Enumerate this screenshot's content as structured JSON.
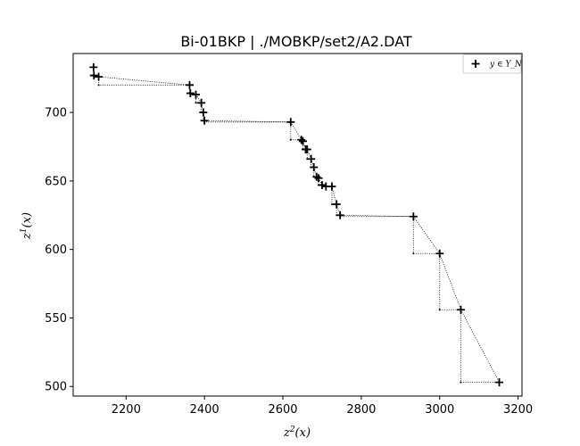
{
  "chart_data": {
    "type": "scatter",
    "title": "Bi-01BKP | ./MOBKP/set2/A2.DAT",
    "xlabel": "z^2(x)",
    "ylabel": "z^1(x)",
    "xlim": [
      2065,
      3210
    ],
    "ylim": [
      493,
      743
    ],
    "xticks": [
      2200,
      2400,
      2600,
      2800,
      3000,
      3200
    ],
    "yticks": [
      500,
      550,
      600,
      650,
      700
    ],
    "grid": false,
    "legend": {
      "position": "top-right",
      "entries": [
        {
          "label": "y ∈ Y_N",
          "marker": "plus"
        }
      ]
    },
    "series": [
      {
        "name": "y ∈ Y_N",
        "marker": "plus",
        "color": "#000000",
        "points": [
          [
            2117,
            733
          ],
          [
            2118,
            727
          ],
          [
            2130,
            726
          ],
          [
            2362,
            720
          ],
          [
            2364,
            714
          ],
          [
            2378,
            713
          ],
          [
            2392,
            707
          ],
          [
            2397,
            700
          ],
          [
            2400,
            694
          ],
          [
            2620,
            693
          ],
          [
            2647,
            680
          ],
          [
            2651,
            679
          ],
          [
            2658,
            673
          ],
          [
            2662,
            673
          ],
          [
            2672,
            666
          ],
          [
            2679,
            660
          ],
          [
            2686,
            653
          ],
          [
            2691,
            652
          ],
          [
            2700,
            647
          ],
          [
            2710,
            646
          ],
          [
            2725,
            646
          ],
          [
            2737,
            633
          ],
          [
            2746,
            625
          ],
          [
            2933,
            624
          ],
          [
            3000,
            597
          ],
          [
            3054,
            556
          ],
          [
            3152,
            503
          ]
        ]
      }
    ],
    "connector": {
      "style": "dotted",
      "color": "#000000",
      "points_kind": "local-nadir-staircase"
    }
  }
}
